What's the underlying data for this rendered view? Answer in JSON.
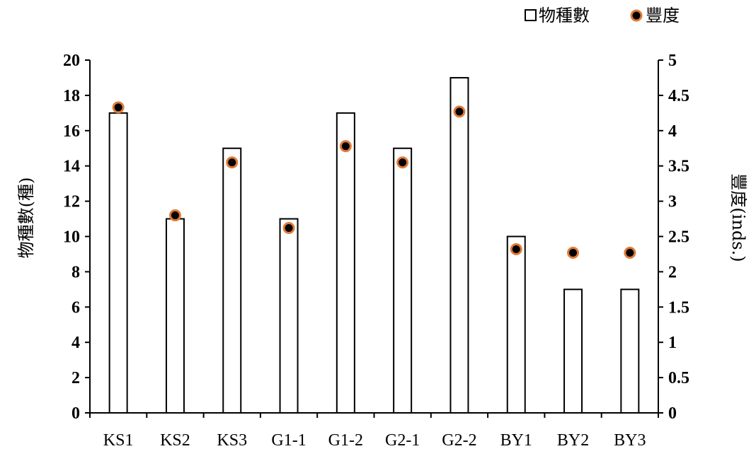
{
  "chart_data": {
    "type": "bar",
    "categories": [
      "KS1",
      "KS2",
      "KS3",
      "G1-1",
      "G1-2",
      "G2-1",
      "G2-2",
      "BY1",
      "BY2",
      "BY3"
    ],
    "series": [
      {
        "name": "物種數",
        "type": "bar",
        "axis": "left",
        "values": [
          17,
          11,
          15,
          11,
          17,
          15,
          19,
          10,
          7,
          7
        ]
      },
      {
        "name": "豐度",
        "type": "scatter",
        "axis": "right",
        "values": [
          4.33,
          2.8,
          3.55,
          2.62,
          3.78,
          3.55,
          4.27,
          2.32,
          2.27,
          2.27
        ]
      }
    ],
    "ylabel": "物種數(種)",
    "y2label": "豐度(inds.)",
    "ylim": [
      0,
      20
    ],
    "y2lim": [
      0,
      5
    ],
    "yticks": [
      "0",
      "2",
      "4",
      "6",
      "8",
      "10",
      "12",
      "14",
      "16",
      "18",
      "20"
    ],
    "y2ticks": [
      "0",
      "0.5",
      "1",
      "1.5",
      "2",
      "2.5",
      "3",
      "3.5",
      "4",
      "4.5",
      "5"
    ],
    "legend_position": "top-right",
    "grid": false,
    "colors": {
      "bar_fill": "#ffffff",
      "bar_stroke": "#000000",
      "marker_fill": "#000000",
      "marker_stroke": "#e07b39"
    }
  }
}
